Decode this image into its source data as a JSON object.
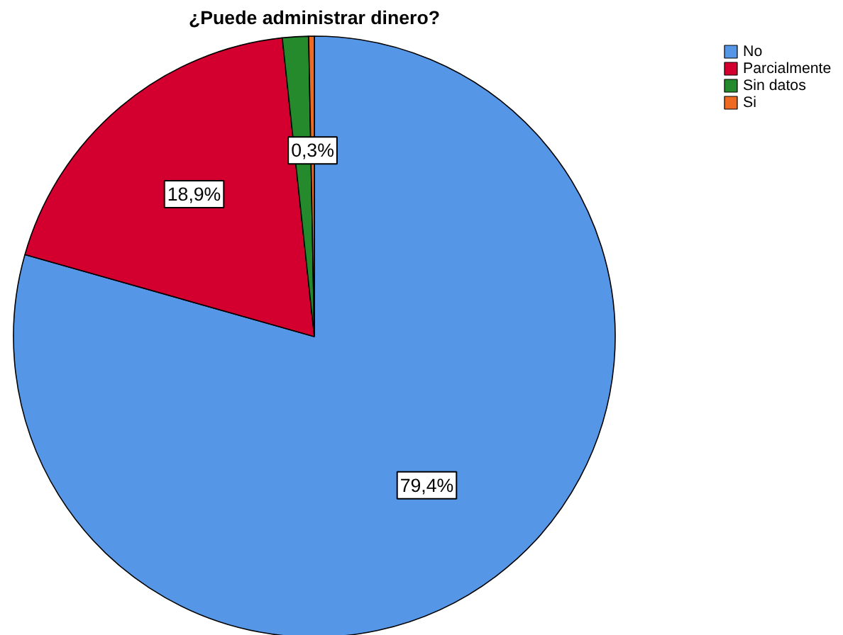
{
  "chart_data": {
    "type": "pie",
    "title": "¿Puede administrar dinero?",
    "categories": [
      "No",
      "Parcialmente",
      "Sin datos",
      "Si"
    ],
    "values": [
      79.4,
      18.9,
      1.4,
      0.3
    ],
    "colors": [
      "#5596e6",
      "#d3002f",
      "#248a2c",
      "#ee6a22"
    ],
    "value_labels": [
      "79,4%",
      "18,9%",
      null,
      "0,3%"
    ],
    "legend": "top right"
  }
}
